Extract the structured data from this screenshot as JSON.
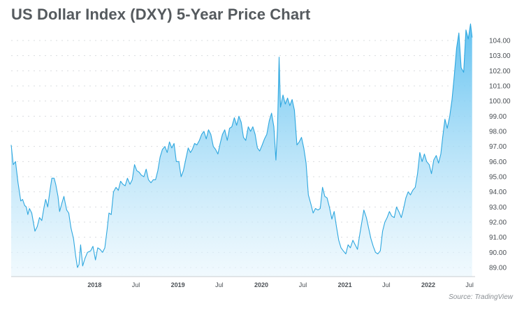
{
  "title": "US Dollar Index (DXY) 5-Year Price Chart",
  "source": "Source: TradingView",
  "colors": {
    "line": "#2ea7df",
    "fill_top": "#5bbff0",
    "fill_bottom": "#e8f6fd",
    "grid": "#d9dcdf",
    "axis": "#c8ccd0"
  },
  "chart_data": {
    "type": "area",
    "title": "US Dollar Index (DXY) 5-Year Price Chart",
    "xlabel": "",
    "ylabel": "",
    "ylim": [
      88.4,
      104.6
    ],
    "xlim": [
      "2017-01-01",
      "2022-07-25"
    ],
    "grid": true,
    "y_ticks": [
      "89.00",
      "90.00",
      "91.00",
      "92.00",
      "93.00",
      "94.00",
      "95.00",
      "96.00",
      "97.00",
      "98.00",
      "99.00",
      "100.00",
      "101.00",
      "102.00",
      "103.00",
      "104.00"
    ],
    "x_ticks": [
      {
        "label": "2018",
        "date": "2018-01-01",
        "bold": true
      },
      {
        "label": "Jul",
        "date": "2018-07-01",
        "bold": false
      },
      {
        "label": "2019",
        "date": "2019-01-01",
        "bold": true
      },
      {
        "label": "Jul",
        "date": "2019-07-01",
        "bold": false
      },
      {
        "label": "2020",
        "date": "2020-01-01",
        "bold": true
      },
      {
        "label": "Jul",
        "date": "2020-07-01",
        "bold": false
      },
      {
        "label": "2021",
        "date": "2021-01-01",
        "bold": true
      },
      {
        "label": "Jul",
        "date": "2021-07-01",
        "bold": false
      },
      {
        "label": "2022",
        "date": "2022-01-01",
        "bold": true
      },
      {
        "label": "Jul",
        "date": "2022-07-01",
        "bold": false
      }
    ],
    "series": [
      {
        "points": [
          [
            "2017-01-01",
            97.1
          ],
          [
            "2017-01-10",
            95.8
          ],
          [
            "2017-01-20",
            96.0
          ],
          [
            "2017-01-31",
            94.6
          ],
          [
            "2017-02-12",
            93.4
          ],
          [
            "2017-02-20",
            93.5
          ],
          [
            "2017-03-01",
            93.1
          ],
          [
            "2017-03-08",
            93.0
          ],
          [
            "2017-03-15",
            92.5
          ],
          [
            "2017-03-22",
            92.9
          ],
          [
            "2017-04-01",
            92.6
          ],
          [
            "2017-04-15",
            91.4
          ],
          [
            "2017-04-25",
            91.7
          ],
          [
            "2017-05-05",
            92.3
          ],
          [
            "2017-05-15",
            92.1
          ],
          [
            "2017-05-25",
            93.0
          ],
          [
            "2017-06-01",
            93.5
          ],
          [
            "2017-06-10",
            93.0
          ],
          [
            "2017-06-20",
            94.1
          ],
          [
            "2017-06-28",
            94.9
          ],
          [
            "2017-07-08",
            94.9
          ],
          [
            "2017-07-15",
            94.5
          ],
          [
            "2017-07-25",
            93.7
          ],
          [
            "2017-08-01",
            92.7
          ],
          [
            "2017-08-10",
            93.2
          ],
          [
            "2017-08-20",
            93.7
          ],
          [
            "2017-08-25",
            93.3
          ],
          [
            "2017-09-01",
            92.8
          ],
          [
            "2017-09-10",
            92.6
          ],
          [
            "2017-09-20",
            91.6
          ],
          [
            "2017-10-01",
            90.9
          ],
          [
            "2017-10-10",
            89.8
          ],
          [
            "2017-10-18",
            89.0
          ],
          [
            "2017-10-25",
            89.2
          ],
          [
            "2017-11-01",
            90.5
          ],
          [
            "2017-11-10",
            89.1
          ],
          [
            "2017-11-20",
            89.6
          ],
          [
            "2017-12-01",
            90.0
          ],
          [
            "2017-12-15",
            90.1
          ],
          [
            "2017-12-25",
            90.4
          ],
          [
            "2018-01-05",
            89.5
          ],
          [
            "2018-01-15",
            90.3
          ],
          [
            "2018-01-25",
            90.2
          ],
          [
            "2018-02-05",
            90.0
          ],
          [
            "2018-02-15",
            90.3
          ],
          [
            "2018-02-25",
            91.5
          ],
          [
            "2018-03-05",
            92.6
          ],
          [
            "2018-03-15",
            92.5
          ],
          [
            "2018-03-25",
            94.0
          ],
          [
            "2018-04-05",
            94.3
          ],
          [
            "2018-04-15",
            94.1
          ],
          [
            "2018-04-25",
            94.7
          ],
          [
            "2018-05-05",
            94.5
          ],
          [
            "2018-05-15",
            94.4
          ],
          [
            "2018-05-25",
            94.9
          ],
          [
            "2018-06-05",
            94.5
          ],
          [
            "2018-06-15",
            94.8
          ],
          [
            "2018-06-25",
            95.8
          ],
          [
            "2018-07-05",
            95.4
          ],
          [
            "2018-07-15",
            95.3
          ],
          [
            "2018-07-25",
            95.1
          ],
          [
            "2018-08-05",
            95.0
          ],
          [
            "2018-08-15",
            95.5
          ],
          [
            "2018-08-25",
            94.8
          ],
          [
            "2018-09-05",
            94.6
          ],
          [
            "2018-09-15",
            94.8
          ],
          [
            "2018-09-25",
            94.8
          ],
          [
            "2018-10-05",
            95.4
          ],
          [
            "2018-10-15",
            96.3
          ],
          [
            "2018-10-25",
            96.8
          ],
          [
            "2018-11-05",
            97.0
          ],
          [
            "2018-11-15",
            96.6
          ],
          [
            "2018-11-25",
            97.3
          ],
          [
            "2018-12-05",
            96.9
          ],
          [
            "2018-12-15",
            97.2
          ],
          [
            "2018-12-25",
            96.0
          ],
          [
            "2019-01-05",
            96.0
          ],
          [
            "2019-01-15",
            95.0
          ],
          [
            "2019-01-25",
            95.4
          ],
          [
            "2019-02-05",
            96.2
          ],
          [
            "2019-02-15",
            96.9
          ],
          [
            "2019-02-25",
            96.6
          ],
          [
            "2019-03-05",
            96.8
          ],
          [
            "2019-03-15",
            97.2
          ],
          [
            "2019-03-25",
            97.1
          ],
          [
            "2019-04-05",
            97.4
          ],
          [
            "2019-04-15",
            97.8
          ],
          [
            "2019-04-25",
            98.0
          ],
          [
            "2019-05-05",
            97.5
          ],
          [
            "2019-05-15",
            98.1
          ],
          [
            "2019-05-25",
            97.8
          ],
          [
            "2019-06-05",
            97.0
          ],
          [
            "2019-06-15",
            96.8
          ],
          [
            "2019-06-25",
            96.5
          ],
          [
            "2019-07-05",
            97.2
          ],
          [
            "2019-07-15",
            97.8
          ],
          [
            "2019-07-25",
            98.1
          ],
          [
            "2019-08-05",
            97.4
          ],
          [
            "2019-08-15",
            98.2
          ],
          [
            "2019-08-25",
            98.3
          ],
          [
            "2019-09-05",
            98.9
          ],
          [
            "2019-09-15",
            98.4
          ],
          [
            "2019-09-25",
            99.0
          ],
          [
            "2019-10-05",
            98.6
          ],
          [
            "2019-10-15",
            97.6
          ],
          [
            "2019-10-25",
            97.4
          ],
          [
            "2019-11-05",
            98.3
          ],
          [
            "2019-11-15",
            98.0
          ],
          [
            "2019-11-25",
            98.3
          ],
          [
            "2019-12-05",
            97.8
          ],
          [
            "2019-12-15",
            96.9
          ],
          [
            "2019-12-25",
            96.7
          ],
          [
            "2020-01-05",
            97.1
          ],
          [
            "2020-01-15",
            97.5
          ],
          [
            "2020-01-25",
            97.8
          ],
          [
            "2020-02-05",
            98.7
          ],
          [
            "2020-02-15",
            99.2
          ],
          [
            "2020-02-25",
            98.3
          ],
          [
            "2020-03-05",
            96.1
          ],
          [
            "2020-03-12",
            98.2
          ],
          [
            "2020-03-19",
            102.9
          ],
          [
            "2020-03-25",
            99.6
          ],
          [
            "2020-04-05",
            100.4
          ],
          [
            "2020-04-15",
            99.8
          ],
          [
            "2020-04-25",
            100.2
          ],
          [
            "2020-05-05",
            99.7
          ],
          [
            "2020-05-15",
            100.1
          ],
          [
            "2020-05-25",
            99.4
          ],
          [
            "2020-06-05",
            97.1
          ],
          [
            "2020-06-15",
            97.3
          ],
          [
            "2020-06-25",
            97.6
          ],
          [
            "2020-07-05",
            96.9
          ],
          [
            "2020-07-15",
            95.9
          ],
          [
            "2020-07-25",
            93.8
          ],
          [
            "2020-08-05",
            93.2
          ],
          [
            "2020-08-15",
            92.6
          ],
          [
            "2020-08-25",
            92.9
          ],
          [
            "2020-09-05",
            92.8
          ],
          [
            "2020-09-15",
            92.9
          ],
          [
            "2020-09-25",
            94.3
          ],
          [
            "2020-10-05",
            93.7
          ],
          [
            "2020-10-15",
            93.6
          ],
          [
            "2020-10-25",
            93.0
          ],
          [
            "2020-11-05",
            92.2
          ],
          [
            "2020-11-15",
            92.7
          ],
          [
            "2020-11-25",
            91.7
          ],
          [
            "2020-12-05",
            90.8
          ],
          [
            "2020-12-15",
            90.3
          ],
          [
            "2020-12-25",
            90.1
          ],
          [
            "2021-01-05",
            89.9
          ],
          [
            "2021-01-15",
            90.5
          ],
          [
            "2021-01-25",
            90.3
          ],
          [
            "2021-02-05",
            90.8
          ],
          [
            "2021-02-15",
            90.5
          ],
          [
            "2021-02-25",
            90.2
          ],
          [
            "2021-03-05",
            91.0
          ],
          [
            "2021-03-15",
            91.9
          ],
          [
            "2021-03-25",
            92.8
          ],
          [
            "2021-04-05",
            92.3
          ],
          [
            "2021-04-15",
            91.6
          ],
          [
            "2021-04-25",
            90.9
          ],
          [
            "2021-05-05",
            90.4
          ],
          [
            "2021-05-15",
            90.0
          ],
          [
            "2021-05-25",
            89.9
          ],
          [
            "2021-06-05",
            90.1
          ],
          [
            "2021-06-15",
            91.4
          ],
          [
            "2021-06-25",
            92.0
          ],
          [
            "2021-07-05",
            92.3
          ],
          [
            "2021-07-15",
            92.7
          ],
          [
            "2021-07-25",
            92.4
          ],
          [
            "2021-08-05",
            92.3
          ],
          [
            "2021-08-15",
            93.0
          ],
          [
            "2021-08-25",
            92.7
          ],
          [
            "2021-09-05",
            92.3
          ],
          [
            "2021-09-15",
            92.9
          ],
          [
            "2021-09-25",
            93.6
          ],
          [
            "2021-10-05",
            94.0
          ],
          [
            "2021-10-15",
            93.8
          ],
          [
            "2021-10-25",
            94.1
          ],
          [
            "2021-11-05",
            94.3
          ],
          [
            "2021-11-15",
            95.2
          ],
          [
            "2021-11-25",
            96.6
          ],
          [
            "2021-12-05",
            96.0
          ],
          [
            "2021-12-15",
            96.5
          ],
          [
            "2021-12-25",
            96.0
          ],
          [
            "2022-01-05",
            95.8
          ],
          [
            "2022-01-15",
            95.2
          ],
          [
            "2022-01-25",
            96.1
          ],
          [
            "2022-02-05",
            96.4
          ],
          [
            "2022-02-15",
            95.9
          ],
          [
            "2022-02-25",
            96.5
          ],
          [
            "2022-03-05",
            97.6
          ],
          [
            "2022-03-15",
            98.8
          ],
          [
            "2022-03-25",
            98.2
          ],
          [
            "2022-04-05",
            99.0
          ],
          [
            "2022-04-15",
            100.1
          ],
          [
            "2022-04-25",
            101.7
          ],
          [
            "2022-05-05",
            103.5
          ],
          [
            "2022-05-15",
            104.5
          ],
          [
            "2022-05-25",
            102.2
          ],
          [
            "2022-06-05",
            101.9
          ],
          [
            "2022-06-15",
            104.7
          ],
          [
            "2022-06-25",
            104.1
          ],
          [
            "2022-07-05",
            105.1
          ],
          [
            "2022-07-12",
            104.2
          ]
        ]
      }
    ]
  }
}
